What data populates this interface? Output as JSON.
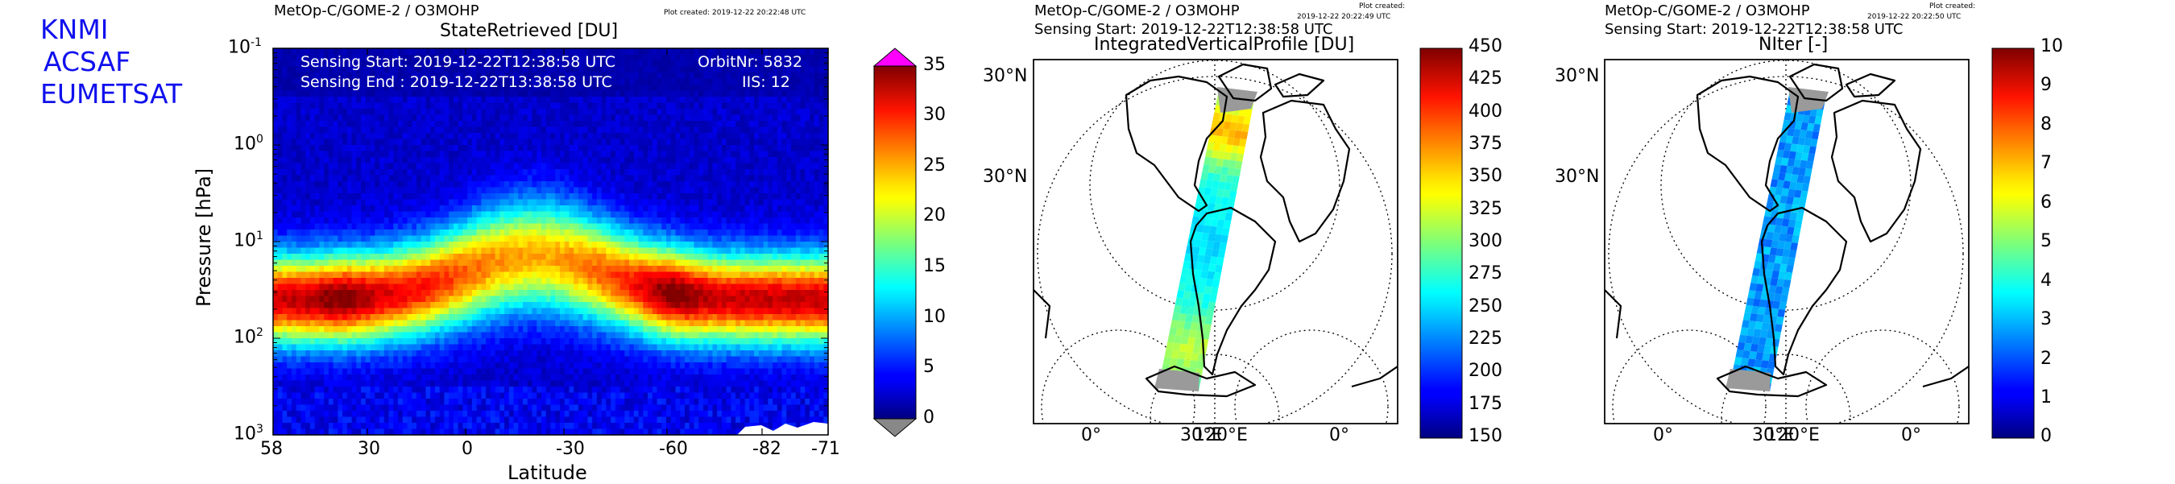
{
  "org_labels": [
    "KNMI",
    "ACSAF",
    "EUMETSAT"
  ],
  "colors": {
    "org_text": "#1010ee",
    "over": "#ff00ff",
    "under": "#888888",
    "land": "#9a9a9a"
  },
  "panels": {
    "curtain": {
      "header": "MetOp-C/GOME-2 / O3MOHP",
      "plot_created": "Plot created: 2019-12-22 20:22:48 UTC",
      "title": "StateRetrieved [DU]",
      "sensing_start": "Sensing Start: 2019-12-22T12:38:58 UTC",
      "sensing_end": "Sensing End  : 2019-12-22T13:38:58 UTC",
      "orbit": "OrbitNr: 5832",
      "iis": "IIS: 12"
    },
    "map1": {
      "header": "MetOp-C/GOME-2 / O3MOHP",
      "plot_created_label": "Plot created:",
      "plot_created_time": "2019-12-22 20:22:49 UTC",
      "sensing": "Sensing Start: 2019-12-22T12:38:58 UTC",
      "title": "IntegratedVerticalProfile [DU]",
      "lat_labels": [
        "30°N",
        "30°N"
      ],
      "lon_labels": [
        "0°",
        "30°E",
        "120°E",
        "0°"
      ]
    },
    "map2": {
      "header": "MetOp-C/GOME-2 / O3MOHP",
      "plot_created_label": "Plot created:",
      "plot_created_time": "2019-12-22 20:22:50 UTC",
      "sensing": "Sensing Start: 2019-12-22T12:38:58 UTC",
      "title": "NIter [-]",
      "lat_labels": [
        "30°N",
        "30°N"
      ],
      "lon_labels": [
        "0°",
        "30°E",
        "120°E",
        "0°"
      ]
    }
  },
  "chart_data": [
    {
      "type": "heatmap",
      "title": "StateRetrieved [DU]",
      "xlabel": "Latitude",
      "ylabel": "Pressure [hPa]",
      "x_ticks": [
        "58",
        "30",
        "0",
        "-30",
        "-60",
        "-82",
        "-71"
      ],
      "x_tick_values": [
        58,
        30,
        0,
        -30,
        -60,
        -82,
        -71
      ],
      "y_ticks": [
        "10",
        "10",
        "10",
        "10",
        "10"
      ],
      "y_tick_exps": [
        "-1",
        "0",
        "1",
        "2",
        "3"
      ],
      "y_tick_values": [
        0.1,
        1,
        10,
        100,
        1000
      ],
      "ylim": [
        1000,
        0.1
      ],
      "y_scale": "log",
      "colorbar": {
        "min": 0,
        "max": 35,
        "ticks": [
          "35",
          "30",
          "25",
          "20",
          "15",
          "10",
          "5",
          "0"
        ],
        "extend": "both"
      },
      "profile_peak_pressure_hPa": 40,
      "notes": "Ozone partial column peaks ~25-33 DU near 30-60 hPa at mid/high latitudes; tropical maximum lifted to ~10-20 hPa"
    },
    {
      "type": "heatmap",
      "title": "IntegratedVerticalProfile [DU]",
      "colorbar": {
        "min": 150,
        "max": 450,
        "ticks": [
          "450",
          "425",
          "400",
          "375",
          "350",
          "325",
          "300",
          "275",
          "250",
          "225",
          "200",
          "175",
          "150"
        ]
      }
    },
    {
      "type": "heatmap",
      "title": "NIter [-]",
      "colorbar": {
        "min": 0,
        "max": 10,
        "ticks": [
          "10",
          "9",
          "8",
          "7",
          "6",
          "5",
          "4",
          "3",
          "2",
          "1",
          "0"
        ]
      }
    }
  ]
}
